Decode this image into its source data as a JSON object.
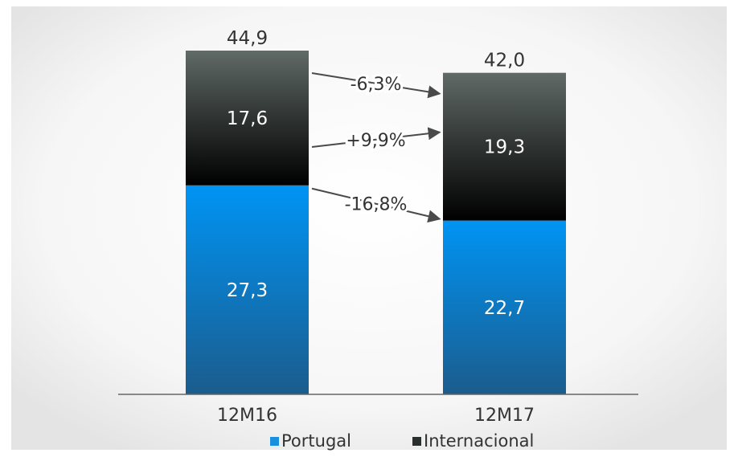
{
  "chart_data": {
    "type": "bar",
    "stacked": true,
    "categories": [
      "12M16",
      "12M17"
    ],
    "series": [
      {
        "name": "Portugal",
        "values": [
          27.3,
          22.7
        ],
        "labels": [
          "27,3",
          "22,7"
        ],
        "color": "#1a8fe0"
      },
      {
        "name": "Internacional",
        "values": [
          17.6,
          19.3
        ],
        "labels": [
          "17,6",
          "19,3"
        ],
        "color": "#2a2e2c"
      }
    ],
    "totals": [
      44.9,
      42.0
    ],
    "total_labels": [
      "44,9",
      "42,0"
    ],
    "changes": [
      {
        "label": "-6,3%",
        "segment": "total"
      },
      {
        "label": "+9,9%",
        "segment": "Internacional"
      },
      {
        "label": "-16,8%",
        "segment": "Portugal"
      }
    ],
    "legend_position": "bottom",
    "grid": false
  }
}
